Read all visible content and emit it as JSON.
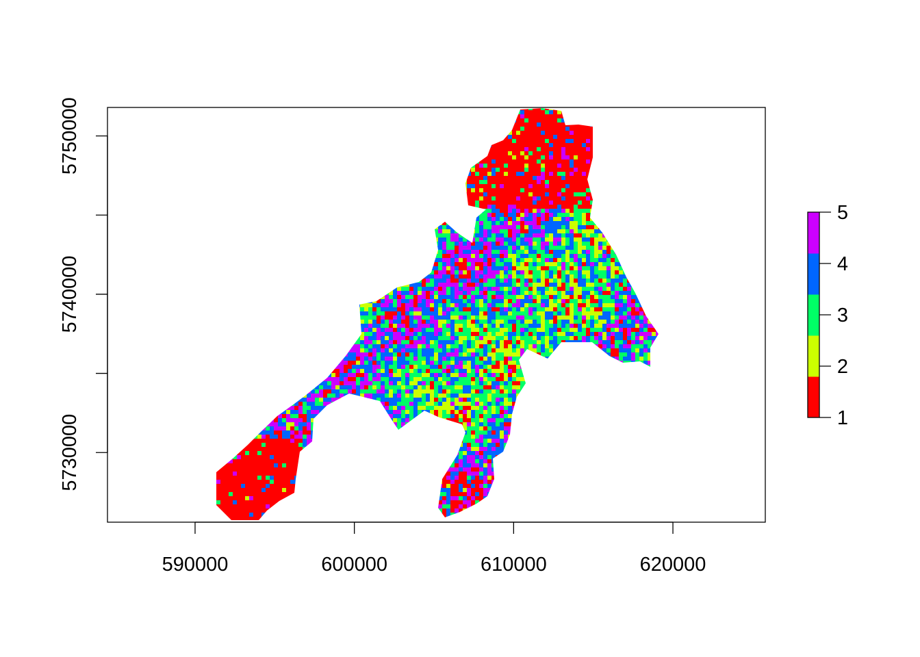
{
  "chart_data": {
    "type": "heatmap",
    "title": "",
    "xlabel": "",
    "ylabel": "",
    "xlim": [
      584500,
      625800
    ],
    "ylim": [
      5725600,
      5751800
    ],
    "x_ticks": [
      590000,
      600000,
      610000,
      620000
    ],
    "x_tick_labels": [
      "590000",
      "600000",
      "610000",
      "620000"
    ],
    "y_ticks": [
      5730000,
      5740000,
      5750000
    ],
    "y_tick_labels": [
      "5730000",
      "5740000",
      "5750000"
    ],
    "y_minor_ticks": [
      5735000,
      5745000
    ],
    "legend": {
      "placement": "right",
      "values": [
        1,
        2,
        3,
        4,
        5
      ],
      "labels": [
        "1",
        "2",
        "3",
        "4",
        "5"
      ],
      "colors": [
        "#ff0000",
        "#ccff00",
        "#00ff66",
        "#0066ff",
        "#cc00ff"
      ]
    },
    "grid": false
  }
}
